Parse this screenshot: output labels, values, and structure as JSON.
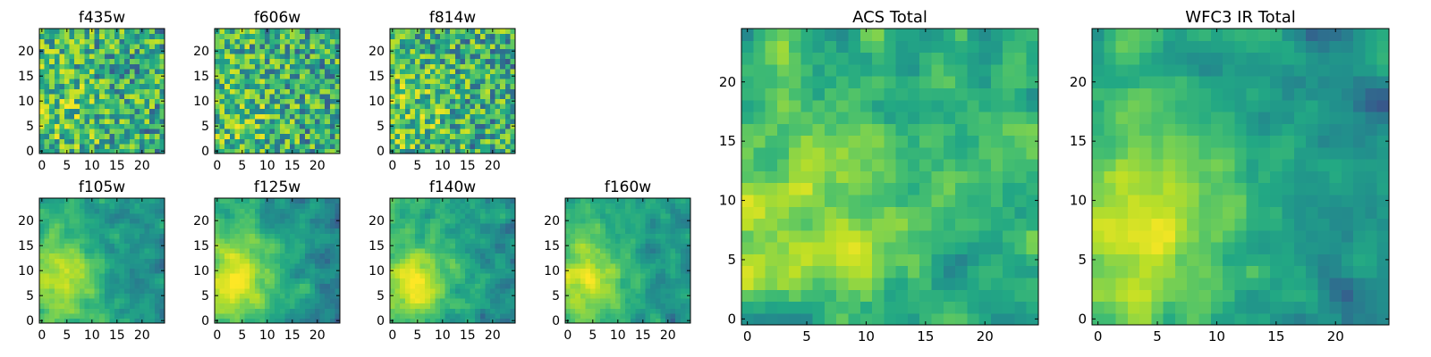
{
  "chart_data": [
    {
      "type": "heatmap",
      "title": "f435w",
      "xticks": [
        0,
        5,
        10,
        15,
        20
      ],
      "yticks": [
        0,
        5,
        10,
        15,
        20
      ],
      "xlim": [
        -0.5,
        24.5
      ],
      "ylim": [
        -0.5,
        24.5
      ],
      "grid": false,
      "colormap": "viridis",
      "texture": "noise",
      "seed": 11
    },
    {
      "type": "heatmap",
      "title": "f606w",
      "xticks": [
        0,
        5,
        10,
        15,
        20
      ],
      "yticks": [
        0,
        5,
        10,
        15,
        20
      ],
      "xlim": [
        -0.5,
        24.5
      ],
      "ylim": [
        -0.5,
        24.5
      ],
      "grid": false,
      "colormap": "viridis",
      "texture": "noise",
      "seed": 23
    },
    {
      "type": "heatmap",
      "title": "f814w",
      "xticks": [
        0,
        5,
        10,
        15,
        20
      ],
      "yticks": [
        0,
        5,
        10,
        15,
        20
      ],
      "xlim": [
        -0.5,
        24.5
      ],
      "ylim": [
        -0.5,
        24.5
      ],
      "grid": false,
      "colormap": "viridis",
      "texture": "noise",
      "seed": 37
    },
    {
      "type": "heatmap",
      "title": "f105w",
      "xticks": [
        0,
        5,
        10,
        15,
        20
      ],
      "yticks": [
        0,
        5,
        10,
        15,
        20
      ],
      "xlim": [
        -0.5,
        24.5
      ],
      "ylim": [
        -0.5,
        24.5
      ],
      "grid": false,
      "colormap": "viridis",
      "texture": "smooth",
      "seed": 41
    },
    {
      "type": "heatmap",
      "title": "f125w",
      "xticks": [
        0,
        5,
        10,
        15,
        20
      ],
      "yticks": [
        0,
        5,
        10,
        15,
        20
      ],
      "xlim": [
        -0.5,
        24.5
      ],
      "ylim": [
        -0.5,
        24.5
      ],
      "grid": false,
      "colormap": "viridis",
      "texture": "smooth",
      "seed": 53
    },
    {
      "type": "heatmap",
      "title": "f140w",
      "xticks": [
        0,
        5,
        10,
        15,
        20
      ],
      "yticks": [
        0,
        5,
        10,
        15,
        20
      ],
      "xlim": [
        -0.5,
        24.5
      ],
      "ylim": [
        -0.5,
        24.5
      ],
      "grid": false,
      "colormap": "viridis",
      "texture": "smooth",
      "seed": 67
    },
    {
      "type": "heatmap",
      "title": "f160w",
      "xticks": [
        0,
        5,
        10,
        15,
        20
      ],
      "yticks": [
        0,
        5,
        10,
        15,
        20
      ],
      "xlim": [
        -0.5,
        24.5
      ],
      "ylim": [
        -0.5,
        24.5
      ],
      "grid": false,
      "colormap": "viridis",
      "texture": "smooth",
      "seed": 79
    },
    {
      "type": "heatmap",
      "title": "ACS Total",
      "xticks": [
        0,
        5,
        10,
        15,
        20
      ],
      "yticks": [
        0,
        5,
        10,
        15,
        20
      ],
      "xlim": [
        -0.5,
        24.5
      ],
      "ylim": [
        -0.5,
        24.5
      ],
      "grid": false,
      "colormap": "viridis",
      "texture": "acs",
      "seed": 97
    },
    {
      "type": "heatmap",
      "title": "WFC3 IR Total",
      "xticks": [
        0,
        5,
        10,
        15,
        20
      ],
      "yticks": [
        0,
        5,
        10,
        15,
        20
      ],
      "xlim": [
        -0.5,
        24.5
      ],
      "ylim": [
        -0.5,
        24.5
      ],
      "grid": false,
      "colormap": "viridis",
      "texture": "ir",
      "seed": 113
    }
  ]
}
